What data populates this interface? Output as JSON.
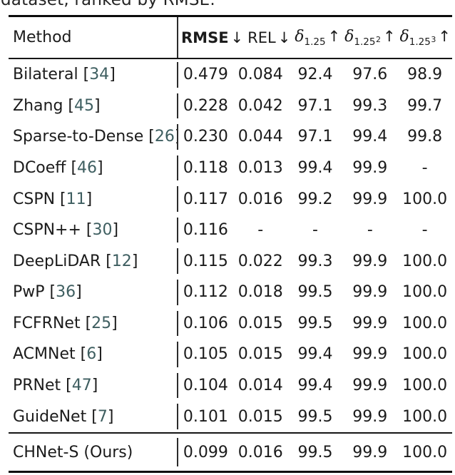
{
  "caption_fragment": "dataset, ranked by RMSE.",
  "table": {
    "header": {
      "method_label": "Method",
      "metrics": [
        {
          "label": "RMSE",
          "bold": true,
          "delta": false,
          "sub": "",
          "exp": "",
          "arrow": "↓"
        },
        {
          "label": "REL",
          "bold": false,
          "delta": false,
          "sub": "",
          "exp": "",
          "arrow": "↓"
        },
        {
          "label": "δ",
          "bold": false,
          "delta": true,
          "sub": "1.25",
          "exp": "",
          "arrow": "↑"
        },
        {
          "label": "δ",
          "bold": false,
          "delta": true,
          "sub": "1.25",
          "exp": "2",
          "arrow": "↑"
        },
        {
          "label": "δ",
          "bold": false,
          "delta": true,
          "sub": "1.25",
          "exp": "3",
          "arrow": "↑"
        }
      ]
    },
    "rows": [
      {
        "method": "Bilateral",
        "cite": "34",
        "values": [
          "0.479",
          "0.084",
          "92.4",
          "97.6",
          "98.9"
        ]
      },
      {
        "method": "Zhang",
        "cite": "45",
        "values": [
          "0.228",
          "0.042",
          "97.1",
          "99.3",
          "99.7"
        ]
      },
      {
        "method": "Sparse-to-Dense",
        "cite": "26",
        "values": [
          "0.230",
          "0.044",
          "97.1",
          "99.4",
          "99.8"
        ]
      },
      {
        "method": "DCoeff",
        "cite": "46",
        "values": [
          "0.118",
          "0.013",
          "99.4",
          "99.9",
          "-"
        ]
      },
      {
        "method": "CSPN",
        "cite": "11",
        "values": [
          "0.117",
          "0.016",
          "99.2",
          "99.9",
          "100.0"
        ]
      },
      {
        "method": "CSPN++",
        "cite": "30",
        "values": [
          "0.116",
          "-",
          "-",
          "-",
          "-"
        ]
      },
      {
        "method": "DeepLiDAR",
        "cite": "12",
        "values": [
          "0.115",
          "0.022",
          "99.3",
          "99.9",
          "100.0"
        ]
      },
      {
        "method": "PwP",
        "cite": "36",
        "values": [
          "0.112",
          "0.018",
          "99.5",
          "99.9",
          "100.0"
        ]
      },
      {
        "method": "FCFRNet",
        "cite": "25",
        "values": [
          "0.106",
          "0.015",
          "99.5",
          "99.9",
          "100.0"
        ]
      },
      {
        "method": "ACMNet",
        "cite": "6",
        "values": [
          "0.105",
          "0.015",
          "99.4",
          "99.9",
          "100.0"
        ]
      },
      {
        "method": "PRNet",
        "cite": "47",
        "values": [
          "0.104",
          "0.014",
          "99.4",
          "99.9",
          "100.0"
        ]
      },
      {
        "method": "GuideNet",
        "cite": "7",
        "values": [
          "0.101",
          "0.015",
          "99.5",
          "99.9",
          "100.0"
        ]
      }
    ],
    "final_row": {
      "method": "CHNet-S (Ours)",
      "cite": null,
      "values": [
        "0.099",
        "0.016",
        "99.5",
        "99.9",
        "100.0"
      ]
    }
  },
  "colors": {
    "citation": "#3e5e60",
    "text": "#1b1b1b",
    "rule": "#0c0c0c"
  }
}
